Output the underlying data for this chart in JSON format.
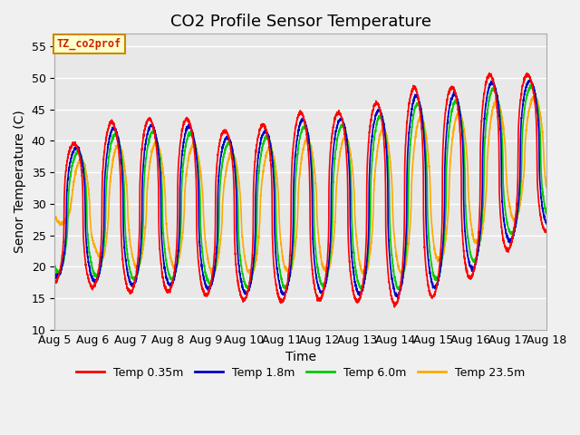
{
  "title": "CO2 Profile Sensor Temperature",
  "xlabel": "Time",
  "ylabel": "Senor Temperature (C)",
  "ylim": [
    10,
    57
  ],
  "yticks": [
    10,
    15,
    20,
    25,
    30,
    35,
    40,
    45,
    50,
    55
  ],
  "x_labels": [
    "Aug 5",
    "Aug 6",
    "Aug 7",
    "Aug 8",
    "Aug 9",
    "Aug 10",
    "Aug 11",
    "Aug 12",
    "Aug 13",
    "Aug 14",
    "Aug 15",
    "Aug 16",
    "Aug 17",
    "Aug 18"
  ],
  "legend_label": "TZ_co2prof",
  "series_labels": [
    "Temp 0.35m",
    "Temp 1.8m",
    "Temp 6.0m",
    "Temp 23.5m"
  ],
  "series_colors": [
    "#ff0000",
    "#0000cc",
    "#00cc00",
    "#ffaa00"
  ],
  "fig_bg_color": "#f0f0f0",
  "plot_bg_color": "#e8e8e8",
  "grid_color": "#ffffff",
  "title_fontsize": 13,
  "axis_fontsize": 10,
  "tick_fontsize": 9
}
